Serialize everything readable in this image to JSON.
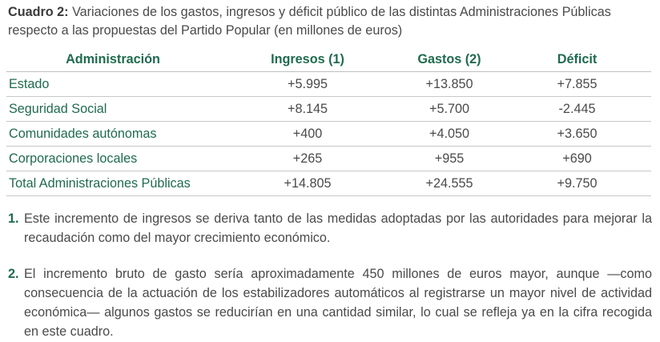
{
  "caption": {
    "label": "Cuadro 2:",
    "text": "Variaciones de los gastos, ingresos y déficit público de las distintas Administraciones Públicas respecto a las propuestas del Partido Popular (en millones de euros)"
  },
  "table": {
    "headers": [
      "Administración",
      "Ingresos (1)",
      "Gastos (2)",
      "Déficit"
    ],
    "rows": [
      {
        "name": "Estado",
        "ingresos": "+5.995",
        "gastos": "+13.850",
        "deficit": "+7.855"
      },
      {
        "name": "Seguridad Social",
        "ingresos": "+8.145",
        "gastos": "+5.700",
        "deficit": "-2.445"
      },
      {
        "name": "Comunidades autónomas",
        "ingresos": "+400",
        "gastos": "+4.050",
        "deficit": "+3.650"
      },
      {
        "name": "Corporaciones locales",
        "ingresos": "+265",
        "gastos": "+955",
        "deficit": "+690"
      },
      {
        "name": "Total Administraciones Públicas",
        "ingresos": "+14.805",
        "gastos": "+24.555",
        "deficit": "+9.750"
      }
    ]
  },
  "notes": [
    {
      "num": "1.",
      "text": "Este incremento de ingresos se deriva tanto de las medidas adoptadas por las autoridades para mejorar la recaudación como del mayor crecimiento económico."
    },
    {
      "num": "2.",
      "text": "El incremento bruto de gasto sería aproximadamente 450 millones de euros mayor, aunque —como consecuencia de la actuación de los estabilizadores automáticos al registrarse un mayor nivel de actividad económica— algunos gastos se reducirían en una cantidad similar, lo cual se refleja ya en la cifra recogida en este cuadro."
    }
  ]
}
